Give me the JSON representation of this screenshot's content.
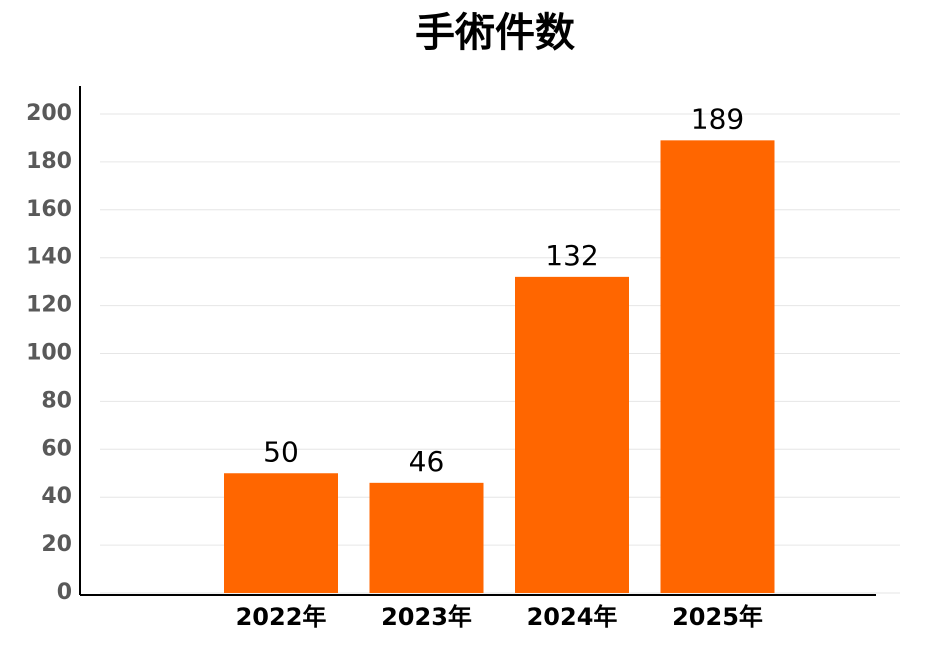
{
  "chart_data": {
    "type": "bar",
    "title": "手術件数",
    "categories": [
      "2022年",
      "2023年",
      "2024年",
      "2025年"
    ],
    "values": [
      50,
      46,
      132,
      189
    ],
    "color": "#ff6600",
    "ylim": [
      0,
      200
    ],
    "yticks": [
      0,
      20,
      40,
      60,
      80,
      100,
      120,
      140,
      160,
      180,
      200
    ],
    "grid": true
  }
}
